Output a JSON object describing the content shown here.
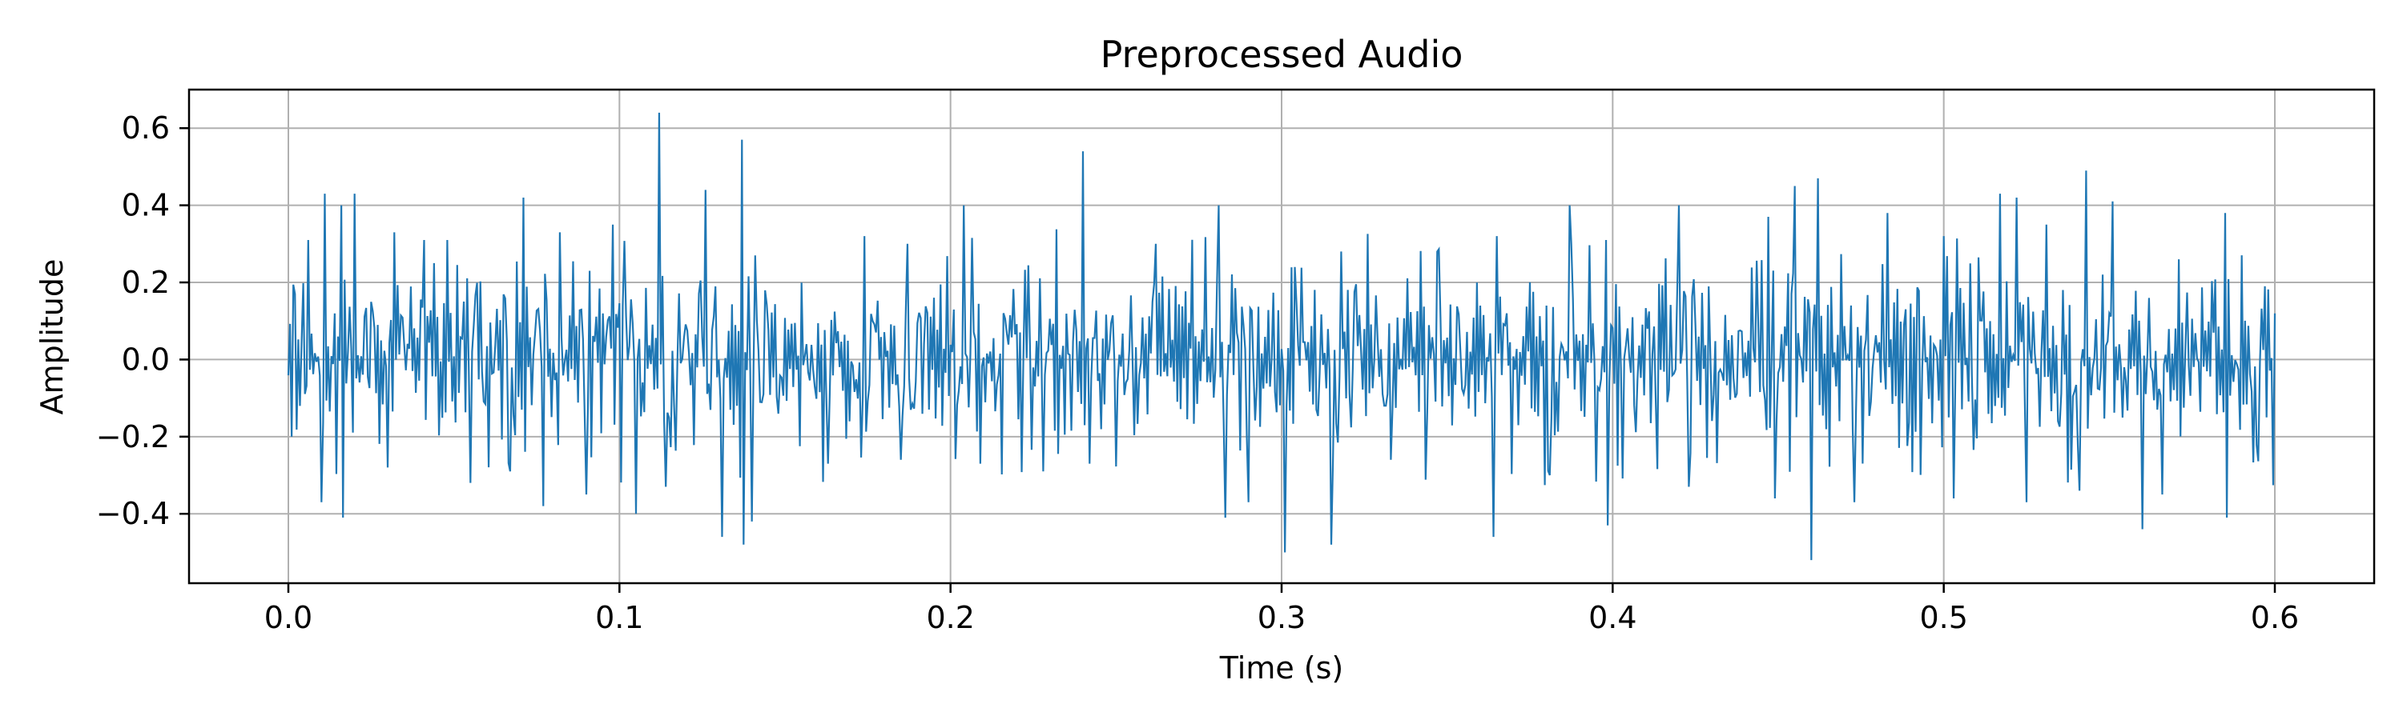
{
  "chart_data": {
    "type": "line",
    "title": "Preprocessed Audio",
    "xlabel": "Time (s)",
    "ylabel": "Amplitude",
    "xlim": [
      -0.03,
      0.63
    ],
    "ylim": [
      -0.58,
      0.7
    ],
    "x_ticks": [
      0.0,
      0.1,
      0.2,
      0.3,
      0.4,
      0.5,
      0.6
    ],
    "x_tick_labels": [
      "0.0",
      "0.1",
      "0.2",
      "0.3",
      "0.4",
      "0.5",
      "0.6"
    ],
    "y_ticks": [
      -0.4,
      -0.2,
      0.0,
      0.2,
      0.4,
      0.6
    ],
    "y_tick_labels": [
      "−0.4",
      "−0.2",
      "0.0",
      "0.2",
      "0.4",
      "0.6"
    ],
    "grid": true,
    "series": [
      {
        "color": "#1f77b4",
        "sample_rate_hz": 2000,
        "x_start": 0.0,
        "x_end": 0.6,
        "typical_amplitude": 0.12,
        "peaks": [
          {
            "x": 0.002,
            "y": 0.17
          },
          {
            "x": 0.006,
            "y": 0.31
          },
          {
            "x": 0.011,
            "y": 0.43
          },
          {
            "x": 0.016,
            "y": 0.4
          },
          {
            "x": 0.02,
            "y": 0.43
          },
          {
            "x": 0.032,
            "y": 0.33
          },
          {
            "x": 0.041,
            "y": 0.31
          },
          {
            "x": 0.048,
            "y": 0.31
          },
          {
            "x": 0.071,
            "y": 0.42
          },
          {
            "x": 0.082,
            "y": 0.33
          },
          {
            "x": 0.098,
            "y": 0.35
          },
          {
            "x": 0.112,
            "y": 0.64
          },
          {
            "x": 0.126,
            "y": 0.44
          },
          {
            "x": 0.137,
            "y": 0.57
          },
          {
            "x": 0.141,
            "y": 0.27
          },
          {
            "x": 0.174,
            "y": 0.32
          },
          {
            "x": 0.187,
            "y": 0.3
          },
          {
            "x": 0.204,
            "y": 0.4
          },
          {
            "x": 0.24,
            "y": 0.54
          },
          {
            "x": 0.262,
            "y": 0.3
          },
          {
            "x": 0.281,
            "y": 0.4
          },
          {
            "x": 0.318,
            "y": 0.28
          },
          {
            "x": 0.347,
            "y": 0.28
          },
          {
            "x": 0.365,
            "y": 0.32
          },
          {
            "x": 0.387,
            "y": 0.4
          },
          {
            "x": 0.398,
            "y": 0.31
          },
          {
            "x": 0.42,
            "y": 0.4
          },
          {
            "x": 0.447,
            "y": 0.37
          },
          {
            "x": 0.455,
            "y": 0.45
          },
          {
            "x": 0.462,
            "y": 0.47
          },
          {
            "x": 0.483,
            "y": 0.38
          },
          {
            "x": 0.5,
            "y": 0.32
          },
          {
            "x": 0.517,
            "y": 0.43
          },
          {
            "x": 0.522,
            "y": 0.42
          },
          {
            "x": 0.531,
            "y": 0.35
          },
          {
            "x": 0.543,
            "y": 0.49
          },
          {
            "x": 0.551,
            "y": 0.41
          },
          {
            "x": 0.571,
            "y": 0.26
          },
          {
            "x": 0.585,
            "y": 0.38
          },
          {
            "x": 0.597,
            "y": 0.19
          }
        ],
        "troughs": [
          {
            "x": 0.001,
            "y": -0.2
          },
          {
            "x": 0.01,
            "y": -0.37
          },
          {
            "x": 0.016,
            "y": -0.41
          },
          {
            "x": 0.03,
            "y": -0.28
          },
          {
            "x": 0.055,
            "y": -0.32
          },
          {
            "x": 0.067,
            "y": -0.29
          },
          {
            "x": 0.077,
            "y": -0.38
          },
          {
            "x": 0.09,
            "y": -0.35
          },
          {
            "x": 0.105,
            "y": -0.4
          },
          {
            "x": 0.114,
            "y": -0.33
          },
          {
            "x": 0.131,
            "y": -0.46
          },
          {
            "x": 0.137,
            "y": -0.48
          },
          {
            "x": 0.14,
            "y": -0.42
          },
          {
            "x": 0.163,
            "y": -0.27
          },
          {
            "x": 0.185,
            "y": -0.26
          },
          {
            "x": 0.209,
            "y": -0.27
          },
          {
            "x": 0.228,
            "y": -0.29
          },
          {
            "x": 0.242,
            "y": -0.27
          },
          {
            "x": 0.283,
            "y": -0.41
          },
          {
            "x": 0.29,
            "y": -0.37
          },
          {
            "x": 0.301,
            "y": -0.5
          },
          {
            "x": 0.315,
            "y": -0.48
          },
          {
            "x": 0.333,
            "y": -0.26
          },
          {
            "x": 0.364,
            "y": -0.46
          },
          {
            "x": 0.381,
            "y": -0.3
          },
          {
            "x": 0.398,
            "y": -0.43
          },
          {
            "x": 0.423,
            "y": -0.33
          },
          {
            "x": 0.449,
            "y": -0.36
          },
          {
            "x": 0.46,
            "y": -0.52
          },
          {
            "x": 0.473,
            "y": -0.37
          },
          {
            "x": 0.503,
            "y": -0.36
          },
          {
            "x": 0.525,
            "y": -0.37
          },
          {
            "x": 0.541,
            "y": -0.34
          },
          {
            "x": 0.56,
            "y": -0.44
          },
          {
            "x": 0.566,
            "y": -0.35
          },
          {
            "x": 0.585,
            "y": -0.41
          },
          {
            "x": 0.597,
            "y": -0.15
          }
        ]
      }
    ]
  }
}
